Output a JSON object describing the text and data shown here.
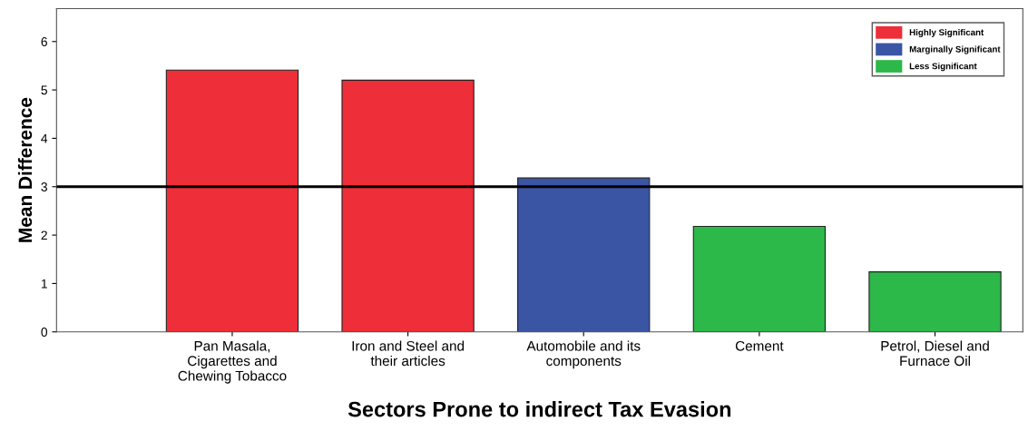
{
  "chart_data": {
    "type": "bar",
    "xlabel": "Sectors Prone to indirect Tax Evasion",
    "ylabel": "Mean Difference",
    "categories": [
      "Pan Masala,\nCigarettes and\nChewing Tobacco",
      "Iron and Steel and\ntheir articles",
      "Automobile and its\ncomponents",
      "Cement",
      "Petrol, Diesel and\nFurnace Oil"
    ],
    "series": [
      {
        "name": "Highly Significant",
        "color": "#ee2e38",
        "values": [
          5.41,
          5.2,
          null,
          null,
          null
        ]
      },
      {
        "name": "Marginally Significant",
        "color": "#3b55a5",
        "values": [
          null,
          null,
          3.18,
          null,
          null
        ]
      },
      {
        "name": "Less Significant",
        "color": "#2db84a",
        "values": [
          null,
          null,
          null,
          2.18,
          1.24
        ]
      }
    ],
    "ylim": [
      0,
      6.68
    ],
    "yticks": [
      0,
      1,
      2,
      3,
      4,
      5,
      6
    ],
    "grid": false,
    "legend": "top right",
    "ref_lines": [
      {
        "axis": "y",
        "value": 3,
        "color": "#000000"
      }
    ]
  }
}
